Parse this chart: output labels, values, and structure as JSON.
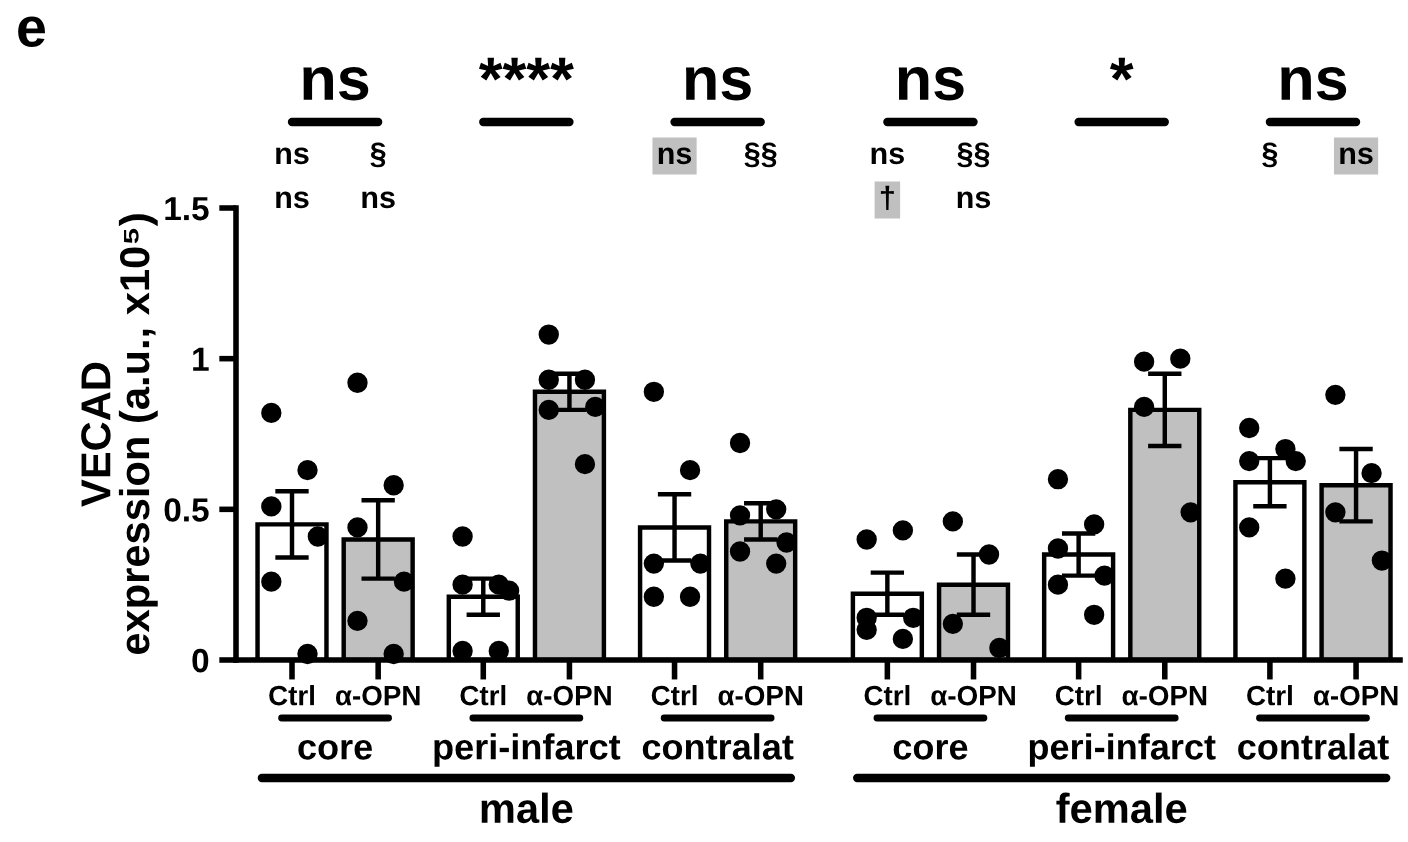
{
  "chart_data": {
    "type": "bar",
    "title": "e",
    "ylabel": "VECAD\nexpression (a.u., x10⁵)",
    "categories": [
      "Ctrl",
      "α-OPN",
      "Ctrl",
      "α-OPN",
      "Ctrl",
      "α-OPN",
      "Ctrl",
      "α-OPN",
      "Ctrl",
      "α-OPN",
      "Ctrl",
      "α-OPN"
    ],
    "series": [
      {
        "colors": [
          "#ffffff",
          "#c0c0c0",
          "#ffffff",
          "#c0c0c0",
          "#ffffff",
          "#c0c0c0",
          "#ffffff",
          "#c0c0c0",
          "#ffffff",
          "#c0c0c0",
          "#ffffff",
          "#c0c0c0"
        ],
        "values": [
          0.45,
          0.4,
          0.21,
          0.89,
          0.44,
          0.46,
          0.22,
          0.25,
          0.35,
          0.83,
          0.59,
          0.58
        ],
        "errors": [
          0.11,
          0.13,
          0.06,
          0.06,
          0.11,
          0.06,
          0.07,
          0.1,
          0.07,
          0.12,
          0.08,
          0.12
        ]
      },
      {
        "type": "scatter",
        "color": "#000000",
        "values": [
          0.82,
          0.92,
          0.41,
          1.08,
          0.89,
          0.72,
          0.4,
          0.46,
          0.6,
          0.99,
          0.77,
          0.88
        ]
      },
      {
        "type": "scatter",
        "color": "#000000",
        "values": [
          0.63,
          0.58,
          0.25,
          0.93,
          0.63,
          0.5,
          0.43,
          0.35,
          0.45,
          1.0,
          0.7,
          0.62
        ]
      },
      {
        "type": "scatter",
        "color": "#000000",
        "values": [
          0.51,
          0.44,
          0.25,
          0.93,
          0.32,
          0.48,
          0.14,
          0.12,
          0.37,
          0.84,
          0.66,
          0.49
        ]
      },
      {
        "type": "scatter",
        "color": "#000000",
        "values": [
          0.41,
          0.26,
          0.23,
          0.84,
          0.32,
          0.39,
          0.14,
          0.04,
          0.28,
          0.49,
          0.66,
          0.33
        ]
      },
      {
        "type": "scatter",
        "color": "#000000",
        "values": [
          0.26,
          0.13,
          0.03,
          0.83,
          0.21,
          0.36,
          0.1,
          null,
          0.25,
          null,
          0.44,
          null
        ]
      },
      {
        "type": "scatter",
        "color": "#000000",
        "values": [
          0.02,
          0.02,
          0.03,
          0.65,
          0.21,
          0.32,
          0.07,
          null,
          0.15,
          null,
          0.27,
          null
        ]
      }
    ],
    "ylim": [
      0,
      1.5
    ],
    "yticks": [
      0,
      0.5,
      1,
      1.5
    ],
    "grid": false,
    "legend": false,
    "marker": "circle",
    "annotations": [
      "ns",
      "****",
      "ns",
      "ns",
      "*",
      "ns",
      "ns",
      "§",
      "ns",
      "ns",
      "ns",
      "§§",
      "ns",
      "§§",
      "†",
      "ns",
      "§",
      "ns",
      "core",
      "peri-infarct",
      "contralat",
      "core",
      "peri-infarct",
      "contralat",
      "male",
      "female"
    ]
  }
}
